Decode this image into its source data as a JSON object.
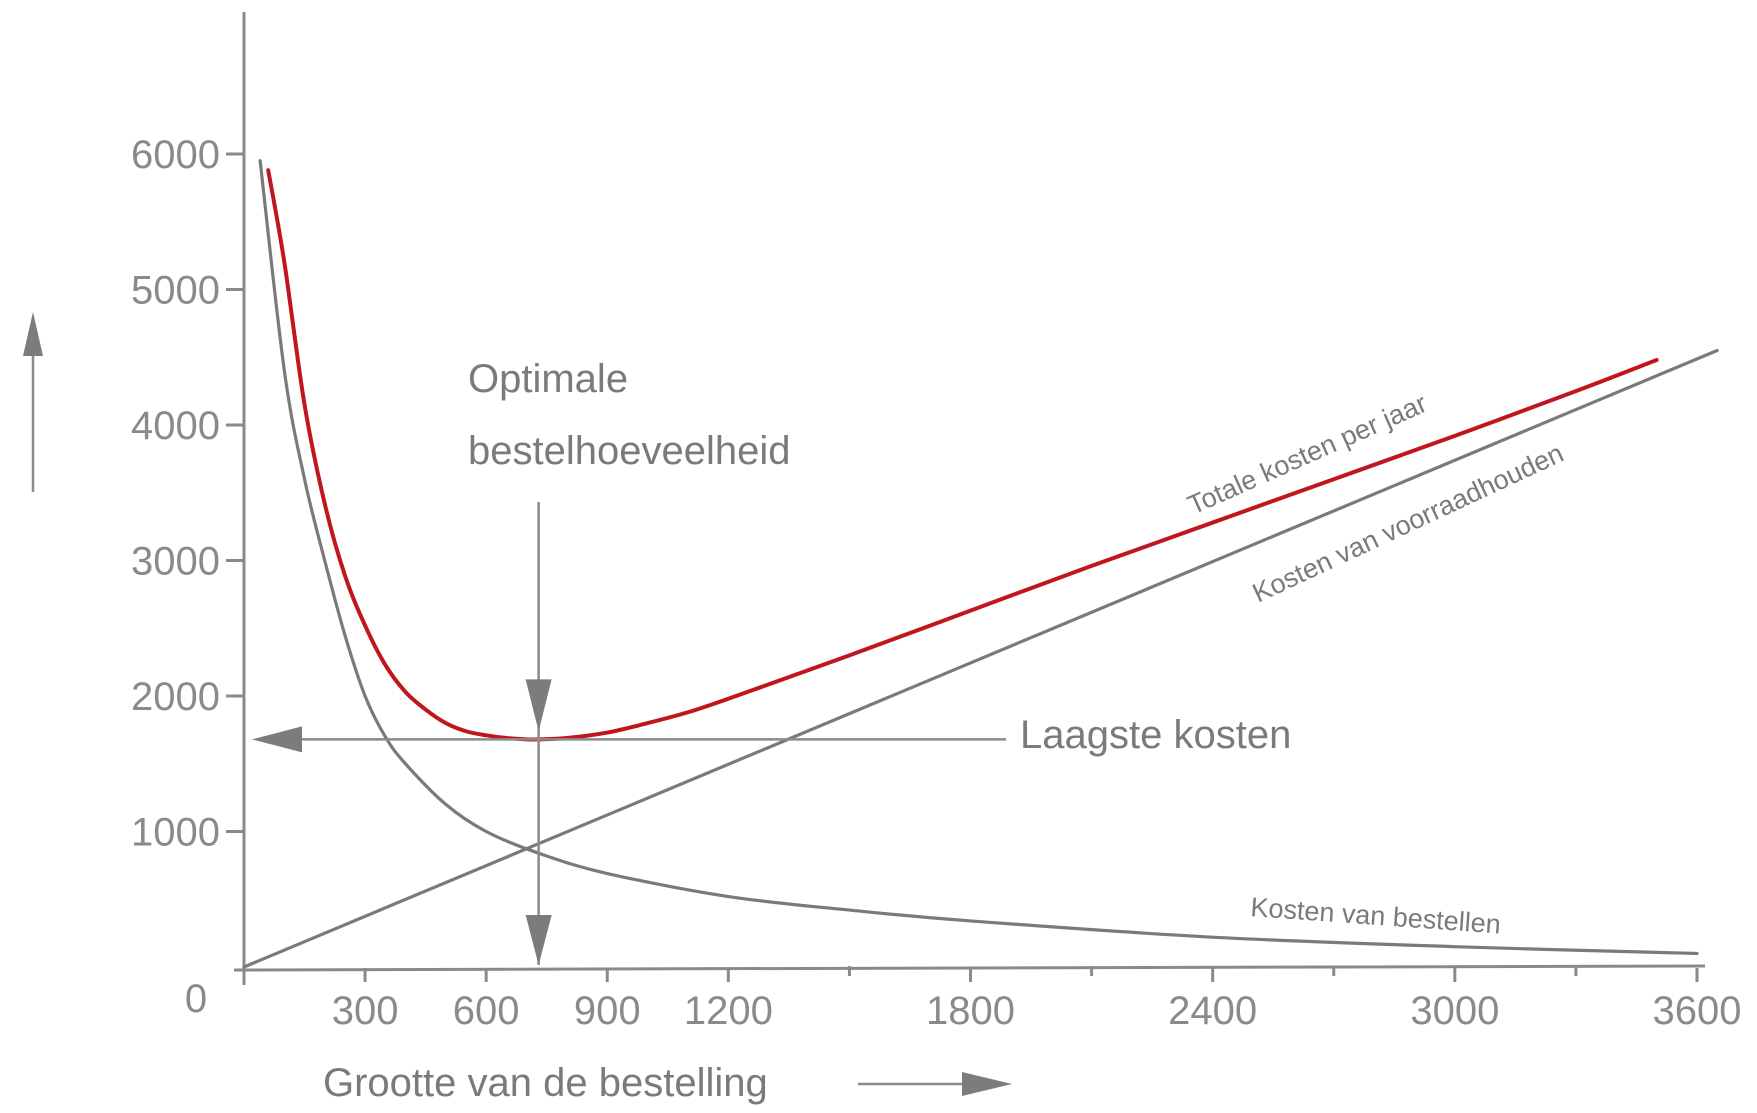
{
  "chart_data": {
    "type": "line",
    "title": "",
    "xlabel": "Grootte van de bestelling",
    "ylabel": "",
    "origin_label": "0",
    "xlim": [
      0,
      3600
    ],
    "ylim": [
      0,
      6000
    ],
    "x_ticks": [
      300,
      600,
      900,
      1200,
      1800,
      2400,
      3000,
      3600
    ],
    "y_ticks": [
      1000,
      2000,
      3000,
      4000,
      5000,
      6000
    ],
    "grid": false,
    "legend": "none",
    "series": [
      {
        "name": "Totale kosten per jaar",
        "color": "#c0161e",
        "x": [
          60,
          100,
          150,
          200,
          250,
          300,
          350,
          400,
          450,
          500,
          550,
          600,
          650,
          700,
          730,
          800,
          900,
          1000,
          1100,
          1200,
          1500,
          1800,
          2100,
          2400,
          2700,
          3000,
          3300,
          3500
        ],
        "y": [
          5880,
          5200,
          4150,
          3420,
          2890,
          2520,
          2230,
          2030,
          1900,
          1800,
          1740,
          1710,
          1690,
          1680,
          1680,
          1690,
          1730,
          1800,
          1880,
          1980,
          2300,
          2630,
          2960,
          3280,
          3600,
          3920,
          4250,
          4480
        ]
      },
      {
        "name": "Kosten van voorraadhouden",
        "color": "#7a7a7a",
        "x": [
          0,
          3650
        ],
        "y": [
          0,
          4550
        ]
      },
      {
        "name": "Kosten van bestellen",
        "color": "#7a7a7a",
        "x": [
          40,
          100,
          150,
          200,
          250,
          300,
          350,
          400,
          500,
          600,
          730,
          900,
          1200,
          1500,
          1800,
          2400,
          3000,
          3600
        ],
        "y": [
          5950,
          4400,
          3600,
          3000,
          2450,
          2000,
          1700,
          1500,
          1200,
          1000,
          840,
          690,
          520,
          420,
          340,
          220,
          150,
          100
        ]
      }
    ],
    "annotations": {
      "optimum_line1": "Optimale",
      "optimum_line2": "bestelhoeveelheid",
      "lowest_cost": "Laagste kosten",
      "optimum_x": 730,
      "lowest_cost_y": 1680
    },
    "colors": {
      "total": "#c0161e",
      "component": "#7a7a7a",
      "axis": "#8a8a8a"
    }
  }
}
